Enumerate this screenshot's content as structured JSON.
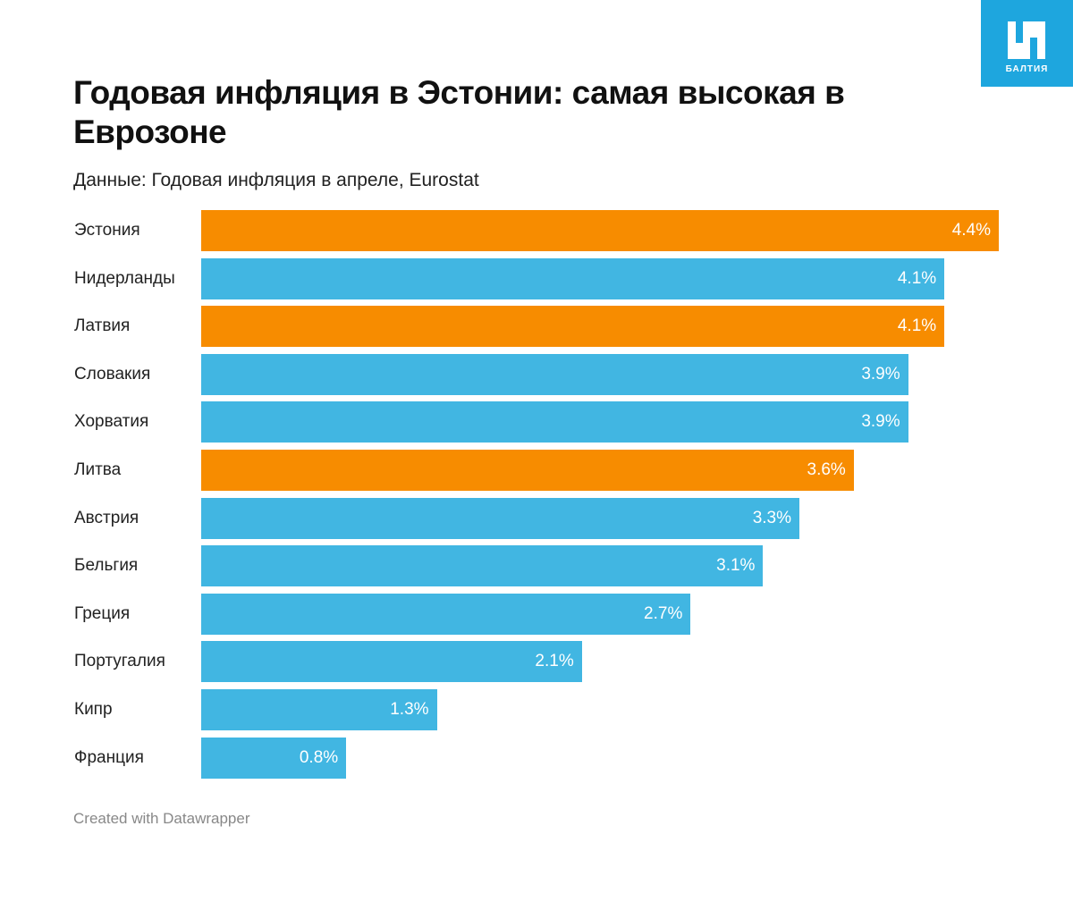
{
  "title": "Годовая инфляция в Эстонии: самая высокая в Еврозоне",
  "subtitle": "Данные: Годовая инфляция в апреле, Eurostat",
  "footer": "Created with Datawrapper",
  "logo_text": "БАЛТИЯ",
  "colors": {
    "highlight": "#f78c00",
    "default": "#41b6e2"
  },
  "chart_data": {
    "type": "bar",
    "orientation": "horizontal",
    "title": "Годовая инфляция в Эстонии: самая высокая в Еврозоне",
    "categories": [
      "Эстония",
      "Нидерланды",
      "Латвия",
      "Словакия",
      "Хорватия",
      "Литва",
      "Австрия",
      "Бельгия",
      "Греция",
      "Португалия",
      "Кипр",
      "Франция"
    ],
    "values": [
      4.4,
      4.1,
      4.1,
      3.9,
      3.9,
      3.6,
      3.3,
      3.1,
      2.7,
      2.1,
      1.3,
      0.8
    ],
    "labels": [
      "4.4%",
      "4.1%",
      "4.1%",
      "3.9%",
      "3.9%",
      "3.6%",
      "3.3%",
      "3.1%",
      "2.7%",
      "2.1%",
      "1.3%",
      "0.8%"
    ],
    "highlighted": [
      true,
      false,
      true,
      false,
      false,
      true,
      false,
      false,
      false,
      false,
      false,
      false
    ],
    "xlim": [
      0,
      4.4
    ],
    "unit": "%"
  }
}
